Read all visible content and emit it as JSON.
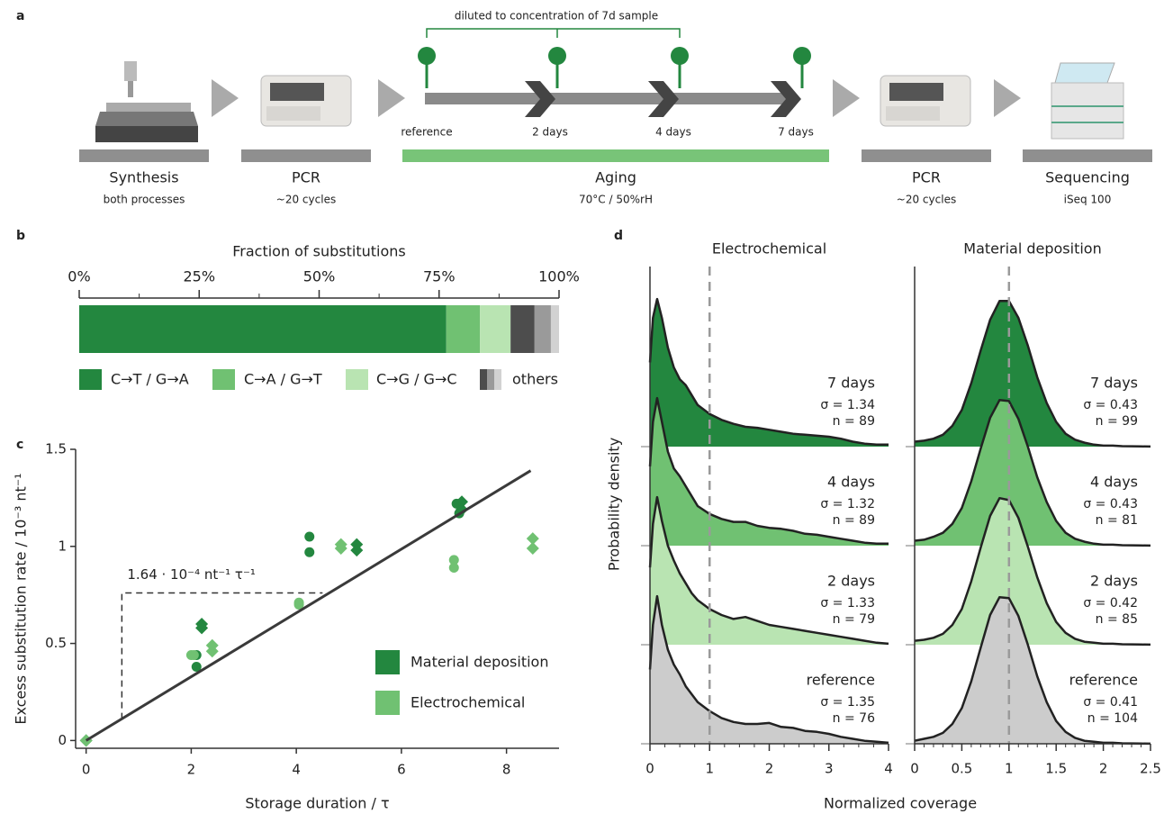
{
  "panel_labels": [
    "a",
    "b",
    "c",
    "d"
  ],
  "workflow": {
    "steps": [
      {
        "label": "Synthesis",
        "sub": "both processes"
      },
      {
        "label": "PCR",
        "sub": "~20 cycles"
      },
      {
        "label": "Aging",
        "sub": "70°C / 50%rH"
      },
      {
        "label": "PCR",
        "sub": "~20 cycles"
      },
      {
        "label": "Sequencing",
        "sub": "iSeq 100"
      }
    ],
    "bracket": "diluted to concentration of 7d sample",
    "timepoints": [
      "reference",
      "2 days",
      "4 days",
      "7 days"
    ]
  },
  "chart_data": [
    {
      "type": "stacked_bar",
      "title": "Fraction of substitutions",
      "xlim": [
        0,
        100
      ],
      "xticks": [
        {
          "value": 0,
          "label": "0%"
        },
        {
          "value": 25,
          "label": "25%"
        },
        {
          "value": 50,
          "label": "50%"
        },
        {
          "value": 75,
          "label": "75%"
        },
        {
          "value": 100,
          "label": "100%"
        }
      ],
      "xminor": [
        12.5,
        37.5,
        62.5,
        87.5
      ],
      "series": [
        {
          "name": "C→T / G→A",
          "color": "#23873f",
          "values": [
            76.5
          ]
        },
        {
          "name": "C→A / G→T",
          "color": "#70c172",
          "values": [
            7.0
          ]
        },
        {
          "name": "C→G / G→C",
          "color": "#b9e4b2",
          "values": [
            6.4
          ]
        },
        {
          "name": "others",
          "colors": [
            "#4d4d4d",
            "#9a9a9a",
            "#d2d2d2"
          ],
          "values": [
            5.0,
            3.4,
            1.7
          ]
        }
      ]
    },
    {
      "type": "scatter",
      "xlabel": "Storage duration / τ",
      "ylabel": "Excess substitution rate / 10⁻³ nt⁻¹",
      "xlim": [
        -0.2,
        9
      ],
      "ylim": [
        -0.04,
        1.5
      ],
      "xticks": [
        0,
        2,
        4,
        6,
        8
      ],
      "yticks": [
        0,
        0.5,
        1,
        1.5
      ],
      "series": [
        {
          "name": "Material deposition",
          "color": "#23873f",
          "x": [
            0,
            2.1,
            2.1,
            2.2,
            2.2,
            4.25,
            4.25,
            5.15,
            5.15,
            7.05,
            7.1,
            7.15,
            7.15
          ],
          "values": [
            0,
            0.44,
            0.38,
            0.6,
            0.58,
            1.05,
            0.97,
            1.01,
            0.98,
            1.22,
            1.17,
            1.23,
            1.19
          ],
          "markers": [
            "diamond",
            "circle",
            "circle",
            "diamond",
            "diamond",
            "circle",
            "circle",
            "diamond",
            "diamond",
            "circle",
            "circle",
            "diamond",
            "diamond"
          ]
        },
        {
          "name": "Electrochemical",
          "color": "#70c172",
          "x": [
            0,
            2.0,
            2.05,
            2.4,
            2.4,
            4.05,
            4.05,
            4.85,
            4.85,
            7.0,
            7.0,
            8.5,
            8.5
          ],
          "values": [
            0,
            0.44,
            0.44,
            0.49,
            0.46,
            0.71,
            0.7,
            1.01,
            0.99,
            0.93,
            0.89,
            1.04,
            0.99
          ],
          "markers": [
            "diamond",
            "circle",
            "circle",
            "diamond",
            "diamond",
            "circle",
            "circle",
            "diamond",
            "diamond",
            "circle",
            "circle",
            "diamond",
            "diamond"
          ]
        }
      ],
      "fit": {
        "x": [
          0,
          8.46
        ],
        "values": [
          0,
          1.39
        ]
      },
      "annotation": "1.64 · 10⁻⁴ nt⁻¹ τ⁻¹",
      "slope_guide": {
        "x": [
          0.68,
          4.5
        ],
        "values": [
          0.11,
          0.76
        ]
      },
      "legend": "lower right"
    },
    {
      "type": "ridgeline",
      "title": "Electrochemical",
      "ylabel": "Probability density",
      "xlabel": "Normalized coverage",
      "xlim": [
        0,
        4
      ],
      "ylim": [
        0,
        4.9
      ],
      "xticks": [
        0,
        1,
        2,
        3,
        4
      ],
      "xminor": [
        0.25,
        0.5,
        0.75,
        1.25,
        1.5,
        1.75,
        2.25,
        2.5,
        2.75,
        3.25,
        3.5,
        3.75
      ],
      "reference_line": 1,
      "x": [
        0,
        0.05,
        0.12,
        0.2,
        0.3,
        0.4,
        0.5,
        0.6,
        0.7,
        0.8,
        1,
        1.2,
        1.4,
        1.6,
        1.8,
        2,
        2.2,
        2.4,
        2.6,
        2.8,
        3,
        3.2,
        3.4,
        3.6,
        3.8,
        4
      ],
      "series": [
        {
          "name": "7 days",
          "sigma": "σ = 1.34",
          "n": "n = 89",
          "baseline": 3,
          "color": "#23873f",
          "values": [
            0.85,
            1.3,
            1.49,
            1.3,
            1.0,
            0.8,
            0.68,
            0.62,
            0.52,
            0.42,
            0.33,
            0.27,
            0.23,
            0.2,
            0.19,
            0.17,
            0.15,
            0.13,
            0.12,
            0.11,
            0.1,
            0.08,
            0.05,
            0.03,
            0.02,
            0.02
          ]
        },
        {
          "name": "4 days",
          "sigma": "σ = 1.32",
          "n": "n = 89",
          "baseline": 2,
          "color": "#70c172",
          "values": [
            0.8,
            1.25,
            1.49,
            1.25,
            0.95,
            0.78,
            0.7,
            0.6,
            0.5,
            0.4,
            0.32,
            0.27,
            0.24,
            0.24,
            0.2,
            0.18,
            0.17,
            0.15,
            0.12,
            0.11,
            0.09,
            0.07,
            0.05,
            0.03,
            0.02,
            0.02
          ]
        },
        {
          "name": "2 days",
          "sigma": "σ = 1.33",
          "n": "n = 79",
          "baseline": 1,
          "color": "#b9e4b2",
          "values": [
            0.78,
            1.22,
            1.49,
            1.25,
            1.0,
            0.85,
            0.72,
            0.62,
            0.52,
            0.45,
            0.36,
            0.3,
            0.26,
            0.28,
            0.24,
            0.2,
            0.18,
            0.16,
            0.14,
            0.12,
            0.1,
            0.08,
            0.06,
            0.04,
            0.02,
            0.01
          ]
        },
        {
          "name": "reference",
          "sigma": "σ = 1.35",
          "n": "n = 76",
          "baseline": 0,
          "color": "#cccccc",
          "values": [
            0.75,
            1.2,
            1.49,
            1.2,
            0.95,
            0.8,
            0.7,
            0.58,
            0.5,
            0.42,
            0.33,
            0.26,
            0.22,
            0.2,
            0.2,
            0.21,
            0.17,
            0.16,
            0.13,
            0.12,
            0.1,
            0.07,
            0.05,
            0.03,
            0.02,
            0.01
          ]
        }
      ]
    },
    {
      "type": "ridgeline",
      "title": "Material deposition",
      "xlim": [
        0,
        2.5
      ],
      "ylim": [
        0,
        4.9
      ],
      "xticks": [
        0,
        0.5,
        1,
        1.5,
        2,
        2.5
      ],
      "xminor": [
        0.1,
        0.2,
        0.3,
        0.4,
        0.6,
        0.7,
        0.8,
        0.9,
        1.1,
        1.2,
        1.3,
        1.4,
        1.6,
        1.7,
        1.8,
        1.9,
        2.1,
        2.2,
        2.3,
        2.4
      ],
      "reference_line": 1,
      "x": [
        0,
        0.1,
        0.2,
        0.3,
        0.4,
        0.5,
        0.6,
        0.7,
        0.8,
        0.9,
        1,
        1.1,
        1.2,
        1.3,
        1.4,
        1.5,
        1.6,
        1.7,
        1.8,
        1.9,
        2,
        2.1,
        2.2,
        2.3,
        2.4,
        2.5
      ],
      "series": [
        {
          "name": "7 days",
          "sigma": "σ = 0.43",
          "n": "n = 99",
          "baseline": 3,
          "color": "#23873f",
          "values": [
            0.05,
            0.06,
            0.08,
            0.12,
            0.21,
            0.37,
            0.64,
            0.97,
            1.28,
            1.47,
            1.47,
            1.3,
            1.02,
            0.7,
            0.44,
            0.25,
            0.13,
            0.07,
            0.04,
            0.02,
            0.01,
            0.01,
            0.005,
            0.003,
            0.002,
            0.001
          ]
        },
        {
          "name": "4 days",
          "sigma": "σ = 0.43",
          "n": "n = 81",
          "baseline": 2,
          "color": "#70c172",
          "values": [
            0.05,
            0.06,
            0.09,
            0.13,
            0.22,
            0.38,
            0.65,
            0.98,
            1.29,
            1.47,
            1.46,
            1.28,
            1.0,
            0.69,
            0.44,
            0.25,
            0.13,
            0.07,
            0.04,
            0.02,
            0.01,
            0.01,
            0.005,
            0.003,
            0.002,
            0.001
          ]
        },
        {
          "name": "2 days",
          "sigma": "σ = 0.42",
          "n": "n = 85",
          "baseline": 1,
          "color": "#b9e4b2",
          "values": [
            0.04,
            0.05,
            0.07,
            0.11,
            0.2,
            0.36,
            0.64,
            0.98,
            1.3,
            1.48,
            1.46,
            1.28,
            0.99,
            0.68,
            0.42,
            0.23,
            0.12,
            0.06,
            0.03,
            0.02,
            0.01,
            0.01,
            0.005,
            0.003,
            0.002,
            0.001
          ]
        },
        {
          "name": "reference",
          "sigma": "σ = 0.41",
          "n": "n = 104",
          "baseline": 0,
          "color": "#cccccc",
          "values": [
            0.03,
            0.05,
            0.07,
            0.11,
            0.2,
            0.36,
            0.63,
            0.97,
            1.3,
            1.48,
            1.47,
            1.29,
            1.0,
            0.68,
            0.42,
            0.23,
            0.12,
            0.06,
            0.03,
            0.02,
            0.01,
            0.01,
            0.005,
            0.003,
            0.002,
            0.001
          ]
        }
      ]
    }
  ]
}
